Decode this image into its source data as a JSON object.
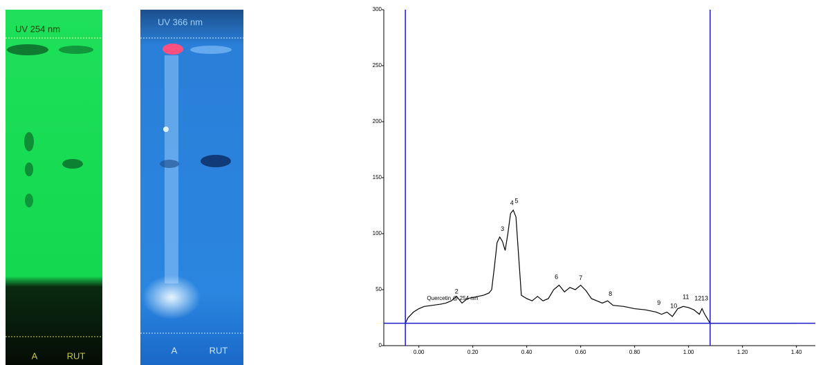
{
  "plates": [
    {
      "title": "UV 254 nm",
      "lanes": [
        "A",
        "RUT"
      ]
    },
    {
      "title": "UV 366 nm",
      "lanes": [
        "A",
        "RUT"
      ]
    }
  ],
  "chart_data": {
    "type": "line",
    "annotation": "Quercetin @ 254 nm",
    "annotation_x": 0.03,
    "annotation_y": 42,
    "x": [
      -0.05,
      -0.04,
      -0.02,
      0.0,
      0.02,
      0.05,
      0.08,
      0.1,
      0.12,
      0.14,
      0.16,
      0.18,
      0.2,
      0.22,
      0.24,
      0.26,
      0.27,
      0.28,
      0.29,
      0.3,
      0.31,
      0.32,
      0.33,
      0.34,
      0.35,
      0.36,
      0.37,
      0.38,
      0.4,
      0.42,
      0.44,
      0.46,
      0.48,
      0.5,
      0.52,
      0.54,
      0.56,
      0.58,
      0.6,
      0.62,
      0.64,
      0.66,
      0.68,
      0.7,
      0.72,
      0.76,
      0.8,
      0.84,
      0.88,
      0.9,
      0.92,
      0.94,
      0.96,
      0.98,
      1.0,
      1.02,
      1.04,
      1.05,
      1.06,
      1.08,
      1.2,
      1.4
    ],
    "series": [
      {
        "color": "#000000",
        "values": [
          20,
          25,
          30,
          33,
          35,
          36,
          37,
          38,
          40,
          44,
          38,
          42,
          43,
          44,
          45,
          47,
          50,
          70,
          92,
          97,
          93,
          85,
          100,
          118,
          121,
          115,
          80,
          45,
          42,
          40,
          44,
          40,
          42,
          50,
          54,
          48,
          52,
          50,
          54,
          49,
          42,
          40,
          38,
          40,
          36,
          35,
          33,
          32,
          30,
          28,
          30,
          26,
          33,
          35,
          34,
          32,
          28,
          33,
          28,
          20,
          20,
          20
        ]
      }
    ],
    "peaks": [
      {
        "label": "2",
        "x": 0.14,
        "y": 48
      },
      {
        "label": "3",
        "x": 0.31,
        "y": 104
      },
      {
        "label": "4",
        "x": 0.345,
        "y": 127
      },
      {
        "label": "5",
        "x": 0.362,
        "y": 129
      },
      {
        "label": "6",
        "x": 0.51,
        "y": 61
      },
      {
        "label": "7",
        "x": 0.6,
        "y": 60
      },
      {
        "label": "8",
        "x": 0.71,
        "y": 46
      },
      {
        "label": "9",
        "x": 0.89,
        "y": 38
      },
      {
        "label": "10",
        "x": 0.945,
        "y": 35
      },
      {
        "label": "11",
        "x": 0.99,
        "y": 43
      },
      {
        "label": "12",
        "x": 1.035,
        "y": 42
      },
      {
        "label": "13",
        "x": 1.06,
        "y": 42
      }
    ],
    "baseline": 20,
    "markers": [
      -0.05,
      1.08
    ],
    "marker_color": "#1a1acc",
    "xlim": [
      -0.13,
      1.47
    ],
    "ylim": [
      0,
      300
    ],
    "xticks": [
      {
        "value": 0,
        "label": "0.00"
      },
      {
        "value": 0.2,
        "label": "0.20"
      },
      {
        "value": 0.4,
        "label": "0.40"
      },
      {
        "value": 0.6,
        "label": "0.60"
      },
      {
        "value": 0.8,
        "label": "0.80"
      },
      {
        "value": 1.0,
        "label": "1.00"
      },
      {
        "value": 1.2,
        "label": "1.20"
      },
      {
        "value": 1.4,
        "label": "1.40"
      }
    ],
    "yticks": [
      0,
      50,
      100,
      150,
      200,
      250,
      300
    ]
  }
}
